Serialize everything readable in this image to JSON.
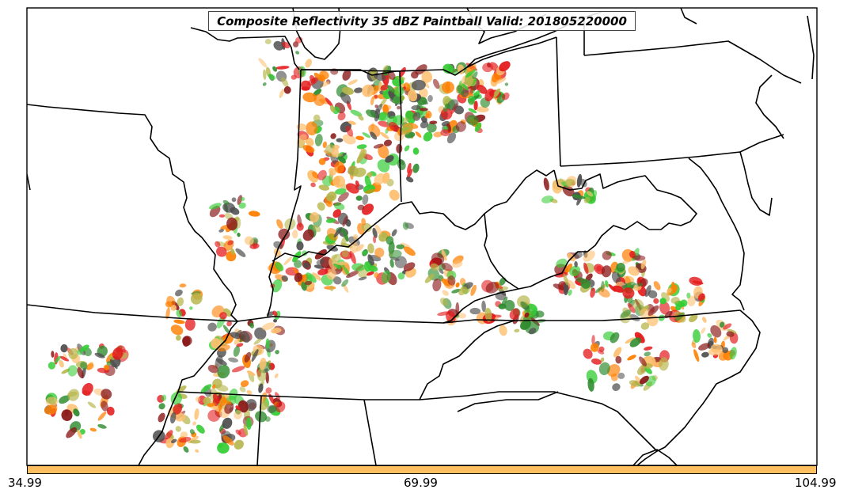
{
  "title": "Composite Reflectivity 35 dBZ Paintball Valid: 201805220000",
  "colorbar": {
    "color": "#fdbf60",
    "tick_labels": [
      "34.99",
      "69.99",
      "104.99"
    ]
  },
  "palette": [
    "#e41a1c",
    "#ff7f00",
    "#fdbf6f",
    "#33cc33",
    "#2e8b2e",
    "#b5b54a",
    "#8b1a1a",
    "#4d4d4d"
  ]
}
